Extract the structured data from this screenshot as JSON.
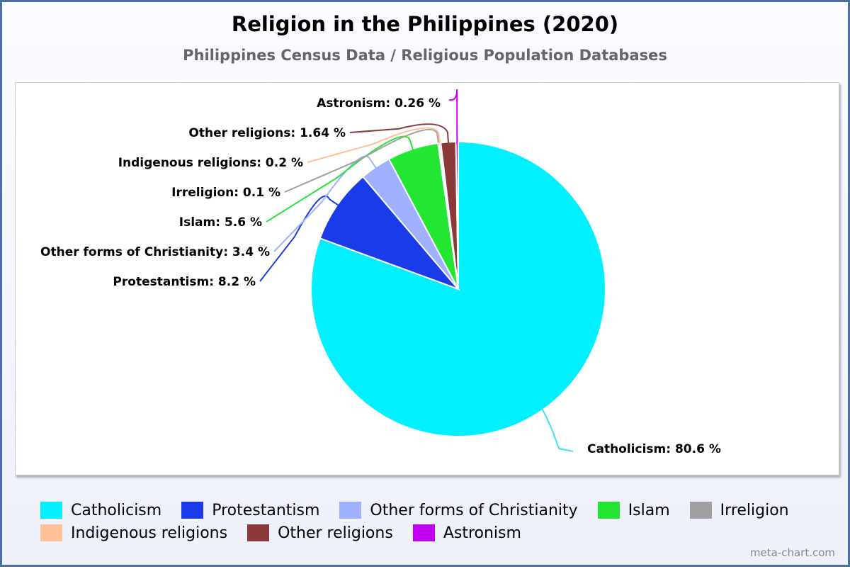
{
  "chart_data": {
    "type": "pie",
    "title": "Religion in the Philippines (2020)",
    "subtitle": "Philippines Census Data / Religious Population Databases",
    "legend_position": "bottom",
    "slices": [
      {
        "label": "Catholicism",
        "value": 80.6,
        "data_label": "Catholicism: 80.6 %",
        "color": "#00f0ff"
      },
      {
        "label": "Protestantism",
        "value": 8.2,
        "data_label": "Protestantism: 8.2 %",
        "color": "#1a3ce8"
      },
      {
        "label": "Other forms of Christianity",
        "value": 3.4,
        "data_label": "Other forms of Christianity: 3.4 %",
        "color": "#a0b0ff"
      },
      {
        "label": "Islam",
        "value": 5.6,
        "data_label": "Islam: 5.6 %",
        "color": "#22e632"
      },
      {
        "label": "Irreligion",
        "value": 0.1,
        "data_label": "Irreligion: 0.1 %",
        "color": "#a0a0a0"
      },
      {
        "label": "Indigenous religions",
        "value": 0.2,
        "data_label": "Indigenous religions: 0.2 %",
        "color": "#ffc098"
      },
      {
        "label": "Other religions",
        "value": 1.64,
        "data_label": "Other religions: 1.64 %",
        "color": "#8b3838"
      },
      {
        "label": "Astronism",
        "value": 0.26,
        "data_label": "Astronism: 0.26 %",
        "color": "#c000f0"
      }
    ]
  },
  "watermark": "meta-chart.com"
}
